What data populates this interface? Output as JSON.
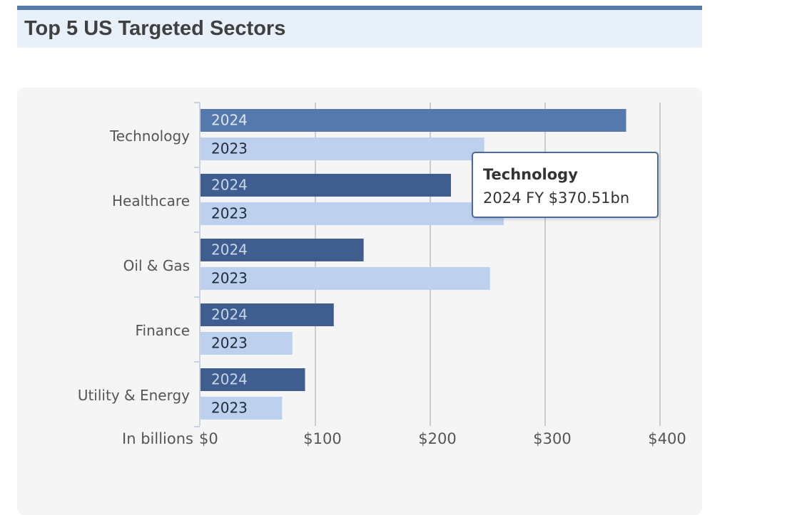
{
  "header": {
    "title": "Top 5 US Targeted Sectors"
  },
  "colors": {
    "accent_bar": "#5679ab",
    "header_bg": "#e8f0f9",
    "panel_bg": "#f5f5f5",
    "bar_2024": "#3f5d8f",
    "bar_2024_highlight": "#5679ab",
    "bar_2023": "#bdd0ee",
    "grid": "#bfbfbf"
  },
  "chart_data": {
    "type": "bar",
    "orientation": "horizontal",
    "title": "",
    "xlabel": "In billions",
    "ylabel": "",
    "xlim": [
      0,
      400
    ],
    "x_ticks": [
      "$0",
      "$100",
      "$200",
      "$300",
      "$400"
    ],
    "x_tick_values": [
      0,
      100,
      200,
      300,
      400
    ],
    "grid": true,
    "categories": [
      "Technology",
      "Healthcare",
      "Oil & Gas",
      "Finance",
      "Utility & Energy"
    ],
    "series": [
      {
        "name": "2024",
        "values": [
          370.51,
          218,
          142,
          116,
          91
        ]
      },
      {
        "name": "2023",
        "values": [
          247,
          264,
          252,
          80,
          71
        ]
      }
    ],
    "highlighted": {
      "category": "Technology",
      "series": "2024"
    }
  },
  "tooltip": {
    "title": "Technology",
    "value": "2024 FY $370.51bn"
  }
}
